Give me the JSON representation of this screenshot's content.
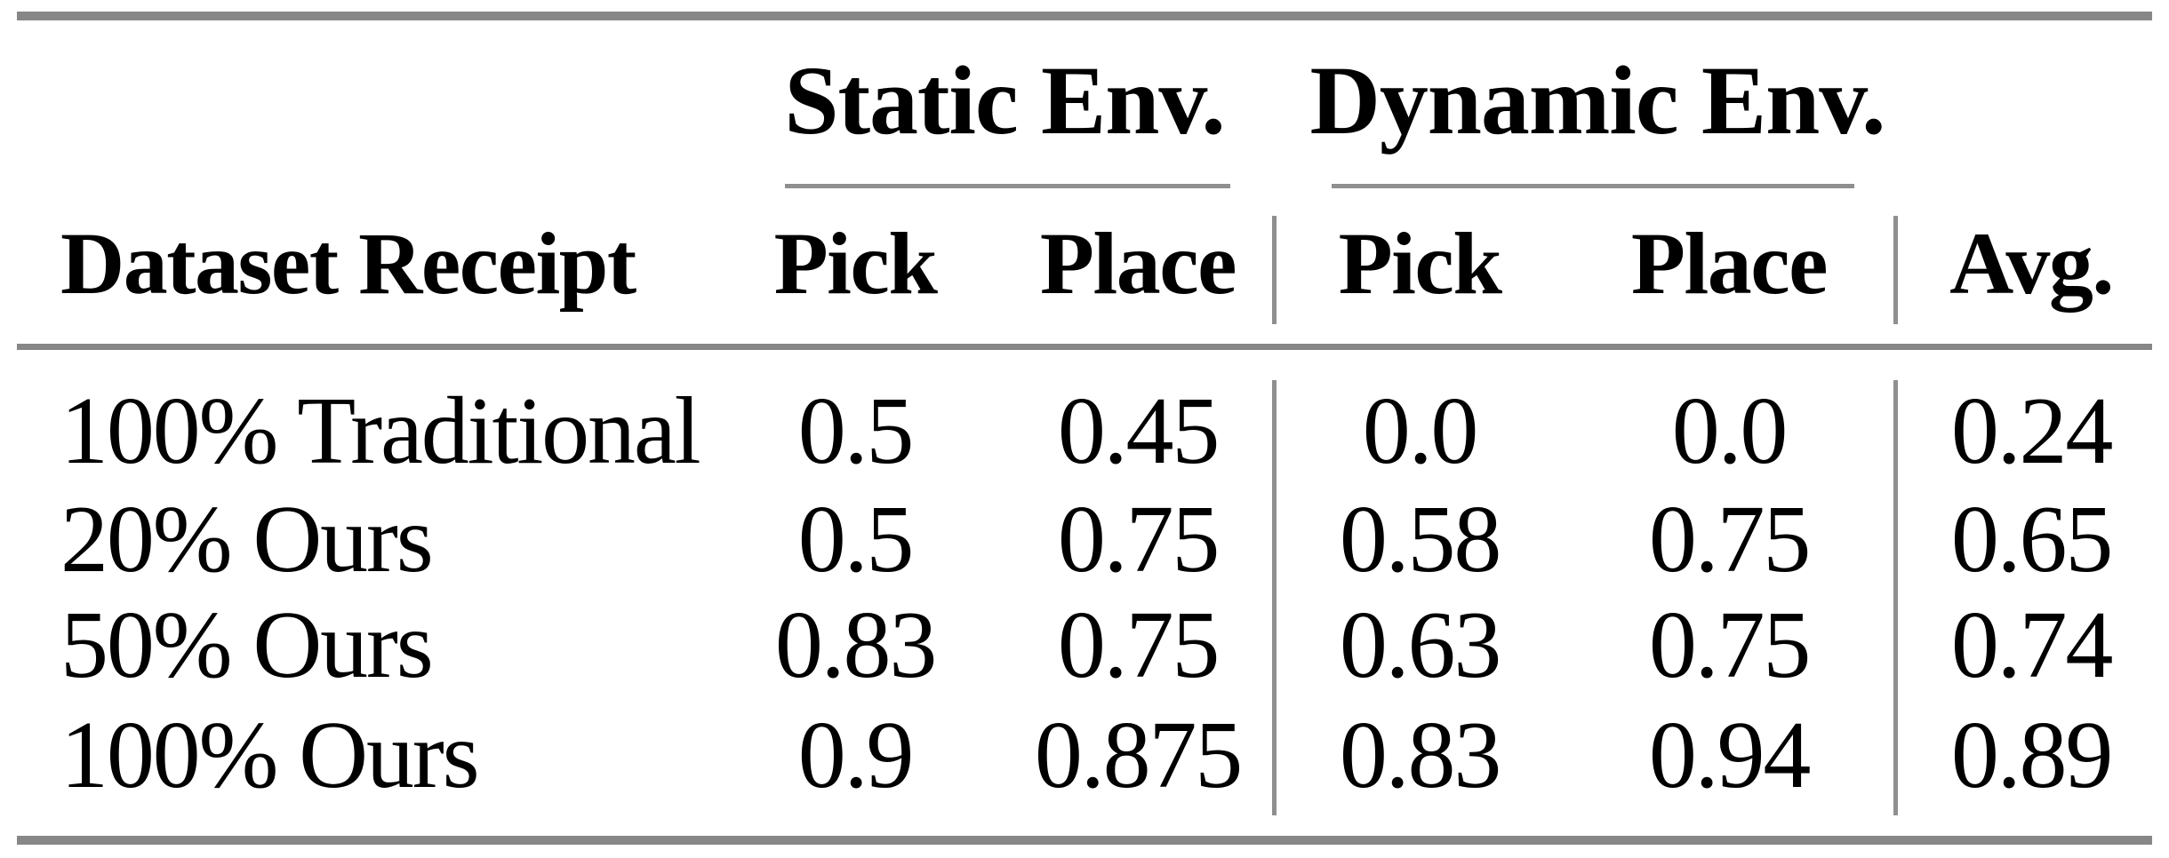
{
  "table": {
    "header": {
      "row_label_col": "Dataset Receipt",
      "groups": [
        {
          "label": "Static Env.",
          "columns": [
            "Pick",
            "Place"
          ]
        },
        {
          "label": "Dynamic Env.",
          "columns": [
            "Pick",
            "Place"
          ]
        }
      ],
      "avg_col": "Avg."
    },
    "rows": [
      {
        "label": "100% Traditional",
        "values": [
          "0.5",
          "0.45",
          "0.0",
          "0.0",
          "0.24"
        ]
      },
      {
        "label": "20% Ours",
        "values": [
          "0.5",
          "0.75",
          "0.58",
          "0.75",
          "0.65"
        ]
      },
      {
        "label": "50% Ours",
        "values": [
          "0.83",
          "0.75",
          "0.63",
          "0.75",
          "0.74"
        ]
      },
      {
        "label": "100% Ours",
        "values": [
          "0.9",
          "0.875",
          "0.83",
          "0.94",
          "0.89"
        ]
      }
    ],
    "colors": {
      "rule": "#878787",
      "rule_thin": "#8f8f8f",
      "text": "#000000",
      "background": "#ffffff"
    }
  },
  "chart_data": {
    "type": "table",
    "columns": [
      "Dataset Receipt",
      "Static Env. Pick",
      "Static Env. Place",
      "Dynamic Env. Pick",
      "Dynamic Env. Place",
      "Avg."
    ],
    "rows": [
      [
        "100% Traditional",
        0.5,
        0.45,
        0.0,
        0.0,
        0.24
      ],
      [
        "20% Ours",
        0.5,
        0.75,
        0.58,
        0.75,
        0.65
      ],
      [
        "50% Ours",
        0.83,
        0.75,
        0.63,
        0.75,
        0.74
      ],
      [
        "100% Ours",
        0.9,
        0.875,
        0.83,
        0.94,
        0.89
      ]
    ]
  }
}
